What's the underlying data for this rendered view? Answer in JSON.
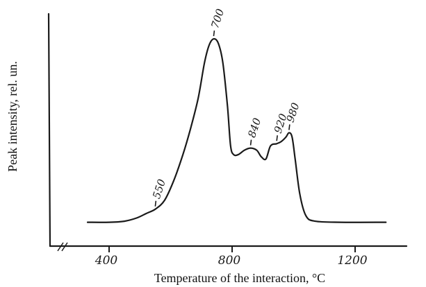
{
  "chart_data": {
    "type": "line",
    "title": "",
    "xlabel": "Temperature of the interaction, °C",
    "ylabel": "Peak intensity, rel. un.",
    "xlim": [
      300,
      1350
    ],
    "ylim": [
      0,
      100
    ],
    "x_ticks": [
      {
        "value": 400,
        "label": "400"
      },
      {
        "value": 800,
        "label": "800"
      },
      {
        "value": 1200,
        "label": "1200"
      }
    ],
    "series": [
      {
        "points": [
          [
            330,
            9
          ],
          [
            400,
            9
          ],
          [
            450,
            9.5
          ],
          [
            490,
            11
          ],
          [
            520,
            13
          ],
          [
            550,
            15
          ],
          [
            580,
            19
          ],
          [
            610,
            28
          ],
          [
            640,
            40
          ],
          [
            665,
            52
          ],
          [
            690,
            66
          ],
          [
            710,
            82
          ],
          [
            725,
            90
          ],
          [
            740,
            93
          ],
          [
            755,
            91
          ],
          [
            770,
            82
          ],
          [
            785,
            62
          ],
          [
            795,
            44
          ],
          [
            805,
            40
          ],
          [
            820,
            40
          ],
          [
            840,
            42
          ],
          [
            860,
            43
          ],
          [
            880,
            42
          ],
          [
            895,
            39
          ],
          [
            910,
            38
          ],
          [
            925,
            44
          ],
          [
            945,
            45
          ],
          [
            960,
            46
          ],
          [
            975,
            48
          ],
          [
            985,
            50
          ],
          [
            995,
            48
          ],
          [
            1005,
            38
          ],
          [
            1020,
            22
          ],
          [
            1040,
            12
          ],
          [
            1070,
            9.5
          ],
          [
            1150,
            9
          ],
          [
            1300,
            9
          ]
        ]
      }
    ],
    "annotations": [
      {
        "label": "550",
        "x": 550,
        "y": 15
      },
      {
        "label": "700",
        "x": 740,
        "y": 93
      },
      {
        "label": "840",
        "x": 860,
        "y": 43
      },
      {
        "label": "920",
        "x": 945,
        "y": 45
      },
      {
        "label": "980",
        "x": 985,
        "y": 50
      }
    ],
    "grid": false,
    "legend": "none"
  }
}
